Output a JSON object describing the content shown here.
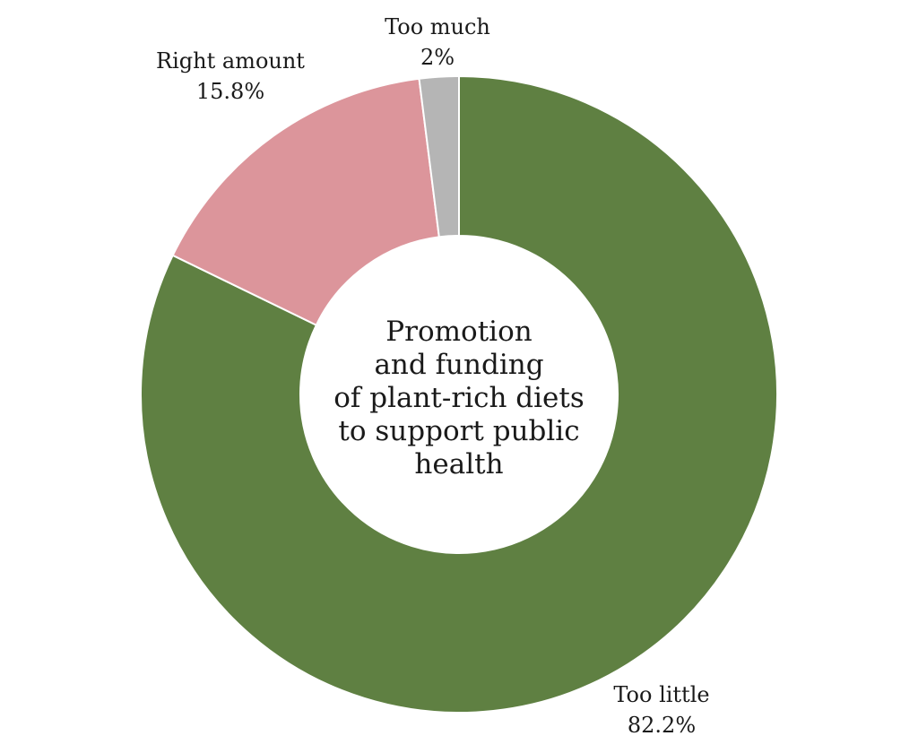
{
  "chart_data": {
    "type": "pie",
    "variant": "donut",
    "center_label": [
      "Promotion",
      "and funding",
      "of plant-rich diets",
      "to support public",
      "health"
    ],
    "slices": [
      {
        "name": "Too little",
        "value": 82.2,
        "value_label": "82.2%",
        "color": "#5f8042"
      },
      {
        "name": "Right amount",
        "value": 15.8,
        "value_label": "15.8%",
        "color": "#dc959b"
      },
      {
        "name": "Too much",
        "value": 2,
        "value_label": "2%",
        "color": "#b5b5b5"
      }
    ],
    "start": "top",
    "direction": "clockwise"
  }
}
